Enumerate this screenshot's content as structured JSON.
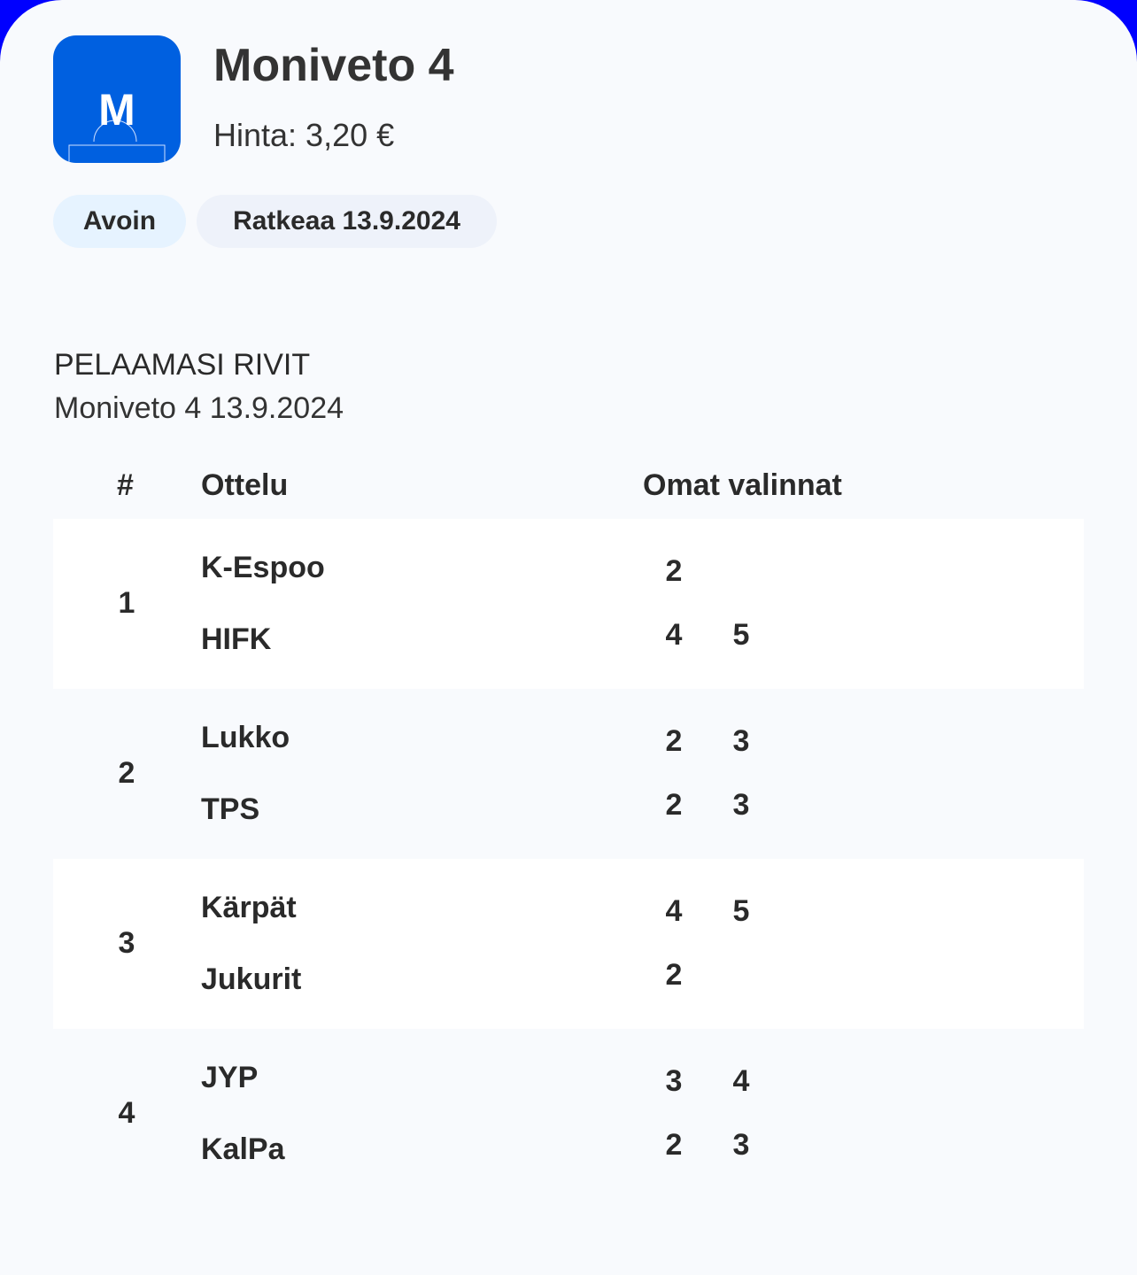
{
  "colors": {
    "accent": "#0060e0",
    "frame": "#0000ff",
    "open_badge": "#e6f3ff"
  },
  "header": {
    "logo_letter": "M",
    "title": "Moniveto 4",
    "price": "Hinta: 3,20 €"
  },
  "badges": {
    "status": "Avoin",
    "resolves": "Ratkeaa 13.9.2024"
  },
  "section": {
    "title": "PELAAMASI RIVIT",
    "subtitle": "Moniveto 4 13.9.2024"
  },
  "table": {
    "headers": {
      "num": "#",
      "match": "Ottelu",
      "picks": "Omat valinnat"
    },
    "rows": [
      {
        "num": "1",
        "home": "K-Espoo",
        "away": "HIFK",
        "home_picks": [
          "2"
        ],
        "away_picks": [
          "4",
          "5"
        ]
      },
      {
        "num": "2",
        "home": "Lukko",
        "away": "TPS",
        "home_picks": [
          "2",
          "3"
        ],
        "away_picks": [
          "2",
          "3"
        ]
      },
      {
        "num": "3",
        "home": "Kärpät",
        "away": "Jukurit",
        "home_picks": [
          "4",
          "5"
        ],
        "away_picks": [
          "2"
        ]
      },
      {
        "num": "4",
        "home": "JYP",
        "away": "KalPa",
        "home_picks": [
          "3",
          "4"
        ],
        "away_picks": [
          "2",
          "3"
        ]
      }
    ]
  }
}
